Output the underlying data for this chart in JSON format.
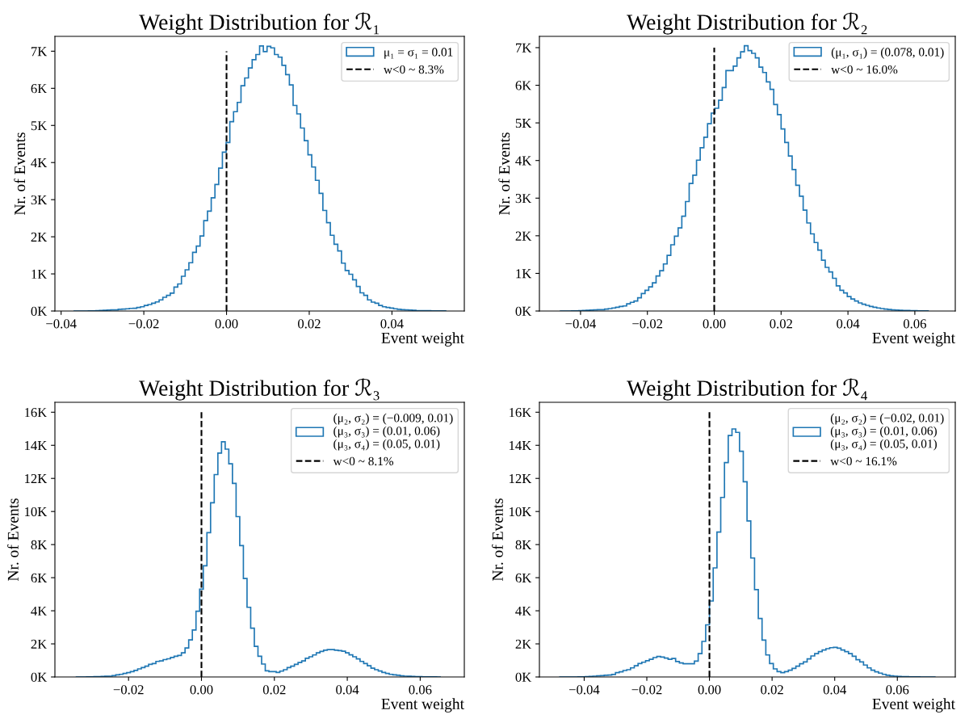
{
  "chart_data": [
    {
      "type": "histogram",
      "title": "Weight Distribution for ℛ₁",
      "xlabel": "Event weight",
      "ylabel": "Nr. of Events",
      "legend": "top right",
      "bins": [
        -0.037,
        -0.0361,
        -0.0352,
        -0.0343,
        -0.0334,
        -0.0325,
        -0.0316,
        -0.0307,
        -0.0298,
        -0.0289,
        -0.028,
        -0.0271,
        -0.0262,
        -0.0253,
        -0.0244,
        -0.0235,
        -0.0226,
        -0.0217,
        -0.0208,
        -0.0199,
        -0.019,
        -0.0181,
        -0.0172,
        -0.0163,
        -0.0154,
        -0.0145,
        -0.0136,
        -0.0127,
        -0.0118,
        -0.0109,
        -0.01,
        -0.0091,
        -0.0082,
        -0.0073,
        -0.0064,
        -0.0055,
        -0.0046,
        -0.0037,
        -0.0028,
        -0.0019,
        -0.001,
        -0.0001,
        0.0008,
        0.0017,
        0.0026,
        0.0035,
        0.0044,
        0.0053,
        0.0062,
        0.0071,
        0.008,
        0.0089,
        0.0098,
        0.0107,
        0.0116,
        0.0125,
        0.0134,
        0.0143,
        0.0152,
        0.0161,
        0.017,
        0.0179,
        0.0188,
        0.0197,
        0.0206,
        0.0215,
        0.0224,
        0.0233,
        0.0242,
        0.0251,
        0.026,
        0.0269,
        0.0278,
        0.0287,
        0.0296,
        0.0305,
        0.0314,
        0.0323,
        0.0332,
        0.0341,
        0.035,
        0.0359,
        0.0368,
        0.0377,
        0.0386,
        0.0395,
        0.0404,
        0.0413,
        0.0422,
        0.0431,
        0.044,
        0.0449,
        0.0458,
        0.0467,
        0.0476,
        0.0485,
        0.0494,
        0.0503,
        0.0512,
        0.0521,
        0.053
      ],
      "series": [
        {
          "name": "μ₁ = σ₁ = 0.01",
          "color": "#1f77b4",
          "values": [
            0,
            0,
            0,
            2,
            5,
            8,
            10,
            15,
            20,
            25,
            30,
            30,
            45,
            50,
            60,
            70,
            75,
            95,
            115,
            150,
            175,
            210,
            245,
            300,
            370,
            420,
            480,
            645,
            730,
            935,
            1110,
            1300,
            1580,
            1750,
            2020,
            2435,
            2690,
            3050,
            3410,
            3850,
            4280,
            4540,
            5100,
            5370,
            5620,
            6070,
            6280,
            6550,
            6770,
            6910,
            7140,
            6990,
            7130,
            7090,
            6910,
            6840,
            6620,
            6370,
            6090,
            5540,
            5310,
            4930,
            4590,
            4210,
            3880,
            3520,
            3170,
            2710,
            2380,
            2040,
            1800,
            1620,
            1290,
            1090,
            990,
            840,
            660,
            490,
            420,
            300,
            240,
            210,
            150,
            115,
            95,
            80,
            60,
            45,
            35,
            30,
            25,
            20,
            15,
            12,
            10,
            8,
            5,
            3,
            2,
            1
          ]
        }
      ],
      "ref_lines": [
        {
          "axis": "x",
          "value": 0,
          "label": "w<0 ~ 8.3%",
          "color": "#000000",
          "line_style": "dashed"
        }
      ],
      "xlim": [
        -0.0415,
        0.0575
      ],
      "xticks": [
        {
          "value": -0.04,
          "label": "−0.04"
        },
        {
          "value": -0.02,
          "label": "−0.02"
        },
        {
          "value": 0,
          "label": "0.00"
        },
        {
          "value": 0.02,
          "label": "0.02"
        },
        {
          "value": 0.04,
          "label": "0.04"
        }
      ],
      "ylim": [
        0,
        7400
      ],
      "yticks": [
        {
          "value": 0,
          "label": "0K"
        },
        {
          "value": 1000,
          "label": "1K"
        },
        {
          "value": 2000,
          "label": "2K"
        },
        {
          "value": 3000,
          "label": "3K"
        },
        {
          "value": 4000,
          "label": "4K"
        },
        {
          "value": 5000,
          "label": "5K"
        },
        {
          "value": 6000,
          "label": "6K"
        },
        {
          "value": 7000,
          "label": "7K"
        }
      ]
    },
    {
      "type": "histogram",
      "title": "Weight Distribution for ℛ₂",
      "xlabel": "Event weight",
      "ylabel": "Nr. of Events",
      "legend": "top right",
      "bins": [
        -0.046,
        -0.0449,
        -0.0438,
        -0.0427,
        -0.0416,
        -0.0405,
        -0.0394,
        -0.0383,
        -0.0372,
        -0.0361,
        -0.035,
        -0.0339,
        -0.0328,
        -0.0317,
        -0.0306,
        -0.0295,
        -0.0284,
        -0.0273,
        -0.0262,
        -0.0251,
        -0.024,
        -0.0229,
        -0.0218,
        -0.0207,
        -0.0196,
        -0.0185,
        -0.0174,
        -0.0163,
        -0.0152,
        -0.0141,
        -0.013,
        -0.0119,
        -0.0108,
        -0.0097,
        -0.0086,
        -0.0075,
        -0.0064,
        -0.0053,
        -0.0042,
        -0.0031,
        -0.002,
        -0.0009,
        0.0002,
        0.0013,
        0.0024,
        0.0035,
        0.0046,
        0.0057,
        0.0068,
        0.0079,
        0.009,
        0.0101,
        0.0112,
        0.0123,
        0.0134,
        0.0145,
        0.0156,
        0.0167,
        0.0178,
        0.0189,
        0.02,
        0.0211,
        0.0222,
        0.0233,
        0.0244,
        0.0255,
        0.0266,
        0.0277,
        0.0288,
        0.0299,
        0.031,
        0.0321,
        0.0332,
        0.0343,
        0.0354,
        0.0365,
        0.0376,
        0.0387,
        0.0398,
        0.0409,
        0.042,
        0.0431,
        0.0442,
        0.0453,
        0.0464,
        0.0475,
        0.0486,
        0.0497,
        0.0508,
        0.0519,
        0.053,
        0.0541,
        0.0552,
        0.0563,
        0.0574,
        0.0585,
        0.0596,
        0.0607,
        0.0618,
        0.0629,
        0.064
      ],
      "series": [
        {
          "name": "(μ₁, σ₁) = (0.078, 0.01)",
          "color": "#1f77b4",
          "values": [
            1,
            2,
            3,
            5,
            8,
            10,
            15,
            20,
            25,
            30,
            35,
            35,
            50,
            65,
            80,
            100,
            120,
            135,
            190,
            230,
            265,
            350,
            465,
            550,
            640,
            750,
            930,
            1070,
            1250,
            1480,
            1760,
            1990,
            2210,
            2520,
            2910,
            3390,
            3610,
            4010,
            4340,
            4620,
            4980,
            5260,
            5390,
            5600,
            5940,
            6390,
            6390,
            6510,
            6730,
            6890,
            7050,
            6920,
            6850,
            6730,
            6480,
            6340,
            6090,
            5890,
            5490,
            5220,
            4840,
            4480,
            4120,
            3760,
            3340,
            3050,
            2680,
            2340,
            2050,
            1820,
            1620,
            1350,
            1160,
            1040,
            870,
            670,
            550,
            480,
            385,
            320,
            265,
            215,
            180,
            150,
            120,
            100,
            80,
            65,
            50,
            40,
            30,
            25,
            20,
            15,
            12,
            10,
            8,
            5,
            3,
            2
          ]
        }
      ],
      "ref_lines": [
        {
          "axis": "x",
          "value": 0,
          "label": "w<0 ~ 16.0%",
          "color": "#000000",
          "line_style": "dashed"
        }
      ],
      "xlim": [
        -0.0523,
        0.0721
      ],
      "xticks": [
        {
          "value": -0.04,
          "label": "−0.04"
        },
        {
          "value": -0.02,
          "label": "−0.02"
        },
        {
          "value": 0,
          "label": "0.00"
        },
        {
          "value": 0.02,
          "label": "0.02"
        },
        {
          "value": 0.04,
          "label": "0.04"
        },
        {
          "value": 0.06,
          "label": "0.06"
        }
      ],
      "ylim": [
        0,
        7300
      ],
      "yticks": [
        {
          "value": 0,
          "label": "0K"
        },
        {
          "value": 1000,
          "label": "1K"
        },
        {
          "value": 2000,
          "label": "2K"
        },
        {
          "value": 3000,
          "label": "3K"
        },
        {
          "value": 4000,
          "label": "4K"
        },
        {
          "value": 5000,
          "label": "5K"
        },
        {
          "value": 6000,
          "label": "6K"
        },
        {
          "value": 7000,
          "label": "7K"
        }
      ]
    },
    {
      "type": "histogram",
      "title": "Weight Distribution for ℛ₃",
      "xlabel": "Event weight",
      "ylabel": "Nr. of Events",
      "legend": "top right",
      "bins": [
        -0.0345,
        -0.0335,
        -0.0325,
        -0.0315,
        -0.0305,
        -0.0295,
        -0.0285,
        -0.0275,
        -0.0265,
        -0.0255,
        -0.0245,
        -0.0235,
        -0.0225,
        -0.0215,
        -0.0205,
        -0.0195,
        -0.0185,
        -0.0175,
        -0.0165,
        -0.0155,
        -0.0145,
        -0.0135,
        -0.0125,
        -0.0115,
        -0.0105,
        -0.0095,
        -0.0085,
        -0.0075,
        -0.0065,
        -0.0055,
        -0.0045,
        -0.0035,
        -0.0025,
        -0.0015,
        -0.0005,
        0.0005,
        0.0015,
        0.0025,
        0.0035,
        0.0045,
        0.0055,
        0.0065,
        0.0075,
        0.0085,
        0.0095,
        0.0105,
        0.0115,
        0.0125,
        0.0135,
        0.0145,
        0.0155,
        0.0165,
        0.0175,
        0.0185,
        0.0195,
        0.0205,
        0.0215,
        0.0225,
        0.0235,
        0.0245,
        0.0255,
        0.0265,
        0.0275,
        0.0285,
        0.0295,
        0.0305,
        0.0315,
        0.0325,
        0.0335,
        0.0345,
        0.0355,
        0.0365,
        0.0375,
        0.0385,
        0.0395,
        0.0405,
        0.0415,
        0.0425,
        0.0435,
        0.0445,
        0.0455,
        0.0465,
        0.0475,
        0.0485,
        0.0495,
        0.0505,
        0.0515,
        0.0525,
        0.0535,
        0.0545,
        0.0555,
        0.0565,
        0.0575,
        0.0585,
        0.0595,
        0.0605,
        0.0615,
        0.0625,
        0.0635,
        0.0645,
        0.0655
      ],
      "series": [
        {
          "name": "(μ₂, σ₂) = (−0.009, 0.01)\n(μ₃, σ₃) = (0.01, 0.06)\n(μ₃, σ₄) = (0.05, 0.01)",
          "color": "#1f77b4",
          "values": [
            0,
            2,
            5,
            8,
            12,
            18,
            25,
            35,
            45,
            50,
            80,
            130,
            160,
            210,
            260,
            320,
            400,
            490,
            570,
            650,
            760,
            810,
            940,
            970,
            1050,
            1100,
            1180,
            1250,
            1300,
            1460,
            1750,
            2240,
            2840,
            3970,
            5300,
            6720,
            8720,
            10530,
            12230,
            13530,
            14210,
            13770,
            12880,
            11700,
            9690,
            7940,
            5950,
            4210,
            2950,
            1850,
            1250,
            780,
            370,
            320,
            320,
            275,
            355,
            440,
            570,
            650,
            760,
            870,
            970,
            1130,
            1220,
            1330,
            1460,
            1540,
            1620,
            1650,
            1650,
            1620,
            1590,
            1560,
            1460,
            1340,
            1220,
            1090,
            940,
            810,
            680,
            530,
            440,
            360,
            275,
            210,
            160,
            130,
            100,
            65,
            50,
            40,
            30,
            22,
            15,
            10,
            7,
            5,
            3,
            2
          ]
        }
      ],
      "ref_lines": [
        {
          "axis": "x",
          "value": 0,
          "label": "w<0 ~ 8.1%",
          "color": "#000000",
          "line_style": "dashed"
        }
      ],
      "xlim": [
        -0.0402,
        0.0721
      ],
      "xticks": [
        {
          "value": -0.02,
          "label": "−0.02"
        },
        {
          "value": 0,
          "label": "0.00"
        },
        {
          "value": 0.02,
          "label": "0.02"
        },
        {
          "value": 0.04,
          "label": "0.04"
        },
        {
          "value": 0.06,
          "label": "0.06"
        }
      ],
      "ylim": [
        0,
        16600
      ],
      "yticks": [
        {
          "value": 0,
          "label": "0K"
        },
        {
          "value": 2000,
          "label": "2K"
        },
        {
          "value": 4000,
          "label": "4K"
        },
        {
          "value": 6000,
          "label": "6K"
        },
        {
          "value": 8000,
          "label": "8K"
        },
        {
          "value": 10000,
          "label": "10K"
        },
        {
          "value": 12000,
          "label": "12K"
        },
        {
          "value": 14000,
          "label": "14K"
        },
        {
          "value": 16000,
          "label": "16K"
        }
      ]
    },
    {
      "type": "histogram",
      "title": "Weight Distribution for ℛ₄",
      "xlabel": "Event weight",
      "ylabel": "Nr. of Events",
      "legend": "top right",
      "bins": [
        -0.048,
        -0.0468,
        -0.0456,
        -0.0444,
        -0.0432,
        -0.042,
        -0.0408,
        -0.0396,
        -0.0384,
        -0.0372,
        -0.036,
        -0.0348,
        -0.0336,
        -0.0324,
        -0.0312,
        -0.03,
        -0.0288,
        -0.0276,
        -0.0264,
        -0.0252,
        -0.024,
        -0.0228,
        -0.0216,
        -0.0204,
        -0.0192,
        -0.018,
        -0.0168,
        -0.0156,
        -0.0144,
        -0.0132,
        -0.012,
        -0.0108,
        -0.0096,
        -0.0084,
        -0.0072,
        -0.006,
        -0.0048,
        -0.0036,
        -0.0024,
        -0.0012,
        0,
        0.0012,
        0.0024,
        0.0036,
        0.0048,
        0.006,
        0.0072,
        0.0084,
        0.0096,
        0.0108,
        0.012,
        0.0132,
        0.0144,
        0.0156,
        0.0168,
        0.018,
        0.0192,
        0.0204,
        0.0216,
        0.0228,
        0.024,
        0.0252,
        0.0264,
        0.0276,
        0.0288,
        0.03,
        0.0312,
        0.0324,
        0.0336,
        0.0348,
        0.036,
        0.0372,
        0.0384,
        0.0396,
        0.0408,
        0.042,
        0.0432,
        0.0444,
        0.0456,
        0.0468,
        0.048,
        0.0492,
        0.0504,
        0.0516,
        0.0528,
        0.054,
        0.0552,
        0.0564,
        0.0576,
        0.0588,
        0.06,
        0.0612,
        0.0624,
        0.0636,
        0.0648,
        0.066,
        0.0672,
        0.0684,
        0.0696,
        0.0708,
        0.072
      ],
      "series": [
        {
          "name": "(μ₂, σ₂) = (−0.02, 0.01)\n(μ₃, σ₃) = (0.01, 0.06)\n(μ₃, σ₄) = (0.05, 0.01)",
          "color": "#1f77b4",
          "values": [
            0,
            1,
            2,
            4,
            6,
            10,
            15,
            20,
            35,
            50,
            65,
            80,
            100,
            115,
            150,
            260,
            310,
            390,
            440,
            550,
            680,
            810,
            890,
            980,
            1070,
            1170,
            1240,
            1200,
            1140,
            1070,
            1120,
            930,
            850,
            800,
            800,
            800,
            960,
            1410,
            2150,
            3150,
            4590,
            6590,
            8760,
            10850,
            12960,
            14590,
            14990,
            14780,
            13640,
            11800,
            9430,
            7190,
            5280,
            3530,
            2230,
            1330,
            810,
            490,
            325,
            260,
            325,
            410,
            520,
            650,
            800,
            910,
            1090,
            1270,
            1410,
            1530,
            1630,
            1710,
            1770,
            1790,
            1740,
            1630,
            1530,
            1410,
            1250,
            1040,
            910,
            720,
            550,
            410,
            310,
            230,
            160,
            100,
            65,
            50,
            35,
            25,
            18,
            12,
            8,
            5,
            3,
            2,
            1,
            1
          ]
        }
      ],
      "ref_lines": [
        {
          "axis": "x",
          "value": 0,
          "label": "w<0 ~ 16.1%",
          "color": "#000000",
          "line_style": "dashed"
        }
      ],
      "xlim": [
        -0.0543,
        0.0785
      ],
      "xticks": [
        {
          "value": -0.04,
          "label": "−0.04"
        },
        {
          "value": -0.02,
          "label": "−0.02"
        },
        {
          "value": 0,
          "label": "0.00"
        },
        {
          "value": 0.02,
          "label": "0.02"
        },
        {
          "value": 0.04,
          "label": "0.04"
        },
        {
          "value": 0.06,
          "label": "0.06"
        }
      ],
      "ylim": [
        0,
        16600
      ],
      "yticks": [
        {
          "value": 0,
          "label": "0K"
        },
        {
          "value": 2000,
          "label": "2K"
        },
        {
          "value": 4000,
          "label": "4K"
        },
        {
          "value": 6000,
          "label": "6K"
        },
        {
          "value": 8000,
          "label": "8K"
        },
        {
          "value": 10000,
          "label": "10K"
        },
        {
          "value": 12000,
          "label": "12K"
        },
        {
          "value": 14000,
          "label": "14K"
        },
        {
          "value": 16000,
          "label": "16K"
        }
      ]
    }
  ]
}
